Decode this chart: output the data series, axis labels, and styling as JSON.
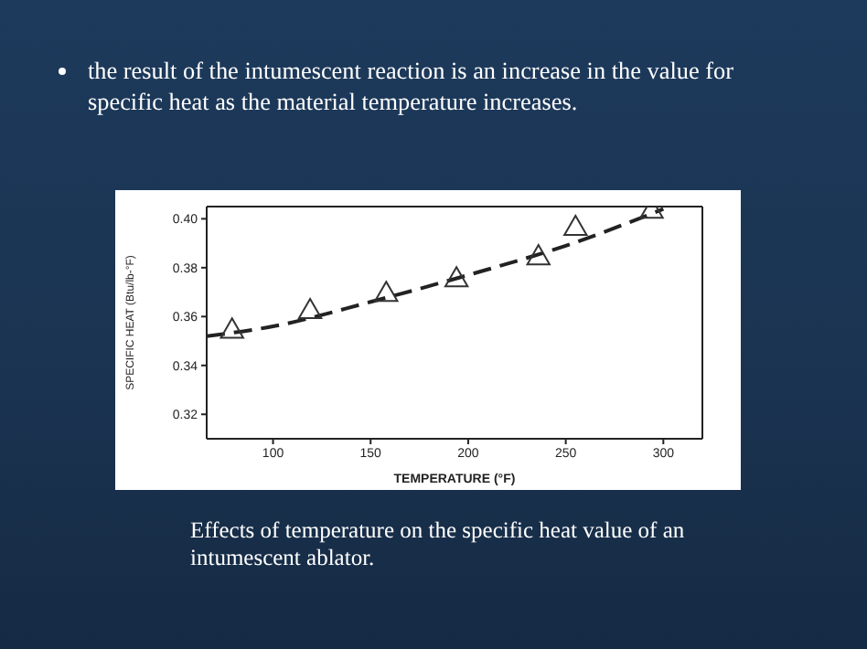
{
  "chart_data": {
    "type": "scatter",
    "title": "the result of the intumescent reaction is an increase in the value for specific heat as the material temperature increases.",
    "xlabel": "TEMPERATURE (°F)",
    "ylabel": "SPECIFIC HEAT (Btu/lb-°F)",
    "annotations": [
      "Effects of temperature on the specific heat value of an intumescent ablator."
    ],
    "series": [
      {
        "marker": "triangle",
        "color": "#333333",
        "x": [
          79,
          119,
          158,
          194,
          236,
          255,
          294
        ],
        "values": [
          0.354,
          0.362,
          0.369,
          0.375,
          0.384,
          0.396,
          0.403
        ]
      },
      {
        "type": "line",
        "marker": "none",
        "line_style": "dashed",
        "color": "#222222",
        "x": [
          66,
          100,
          150,
          200,
          250,
          300
        ],
        "values": [
          0.352,
          0.356,
          0.366,
          0.377,
          0.389,
          0.404
        ]
      }
    ],
    "xlim": [
      66,
      320
    ],
    "xticks": [
      100,
      150,
      200,
      250,
      300
    ],
    "ylim": [
      0.31,
      0.405
    ],
    "yticks": [
      {
        "value": 0.32,
        "label": "0.32"
      },
      {
        "value": 0.34,
        "label": "0.34"
      },
      {
        "value": 0.36,
        "label": "0.36"
      },
      {
        "value": 0.38,
        "label": "0.38"
      },
      {
        "value": 0.4,
        "label": "0.40"
      }
    ],
    "grid": false,
    "legend": false
  }
}
